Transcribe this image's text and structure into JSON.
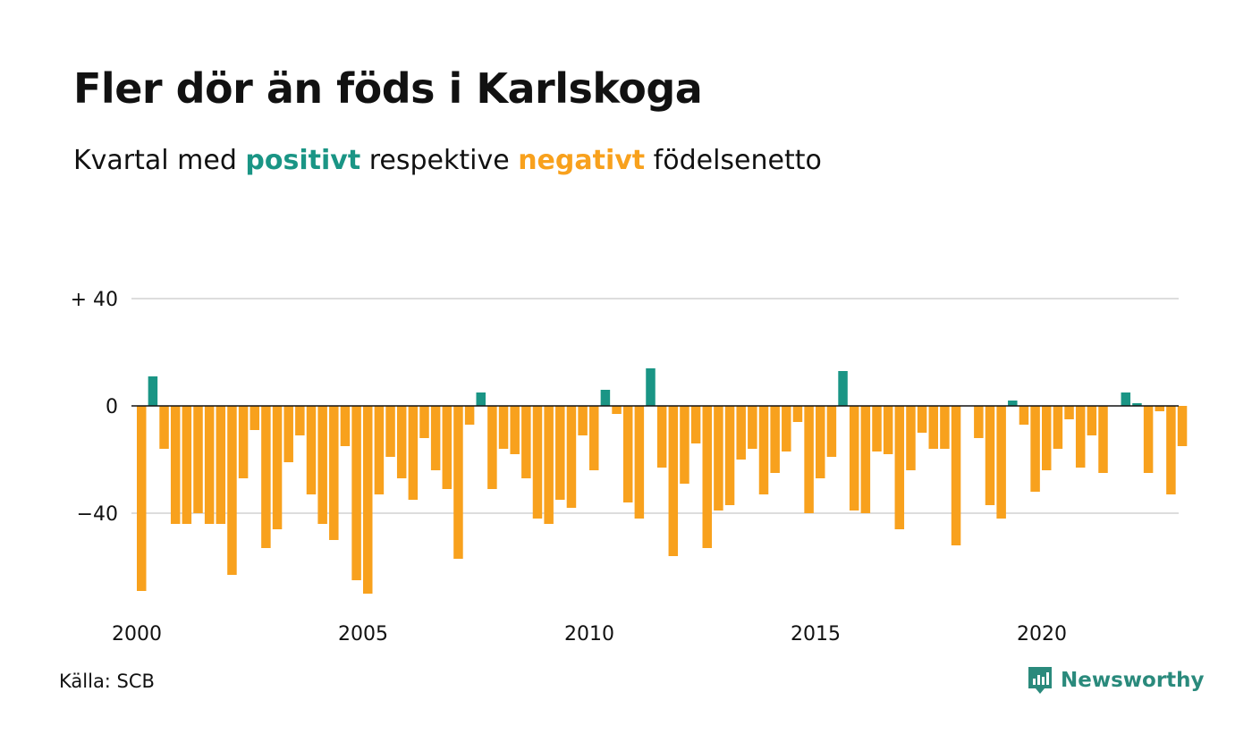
{
  "title": "Fler dör än föds i Karlskoga",
  "subtitle": {
    "part1": "Kvartal med ",
    "positive_word": "positivt",
    "part2": " respektive ",
    "negative_word": "negativt",
    "part3": " födelsenetto"
  },
  "source": "Källa: SCB",
  "brand": {
    "name": "Newsworthy",
    "icon": "newsworthy-logo-icon"
  },
  "colors": {
    "positive": "#1a9585",
    "negative": "#f8a11d",
    "grid": "#dddddd",
    "brand": "#2a8a7c"
  },
  "chart_data": {
    "type": "bar",
    "granularity": "quarter",
    "start_year": 2000,
    "ylim": [
      -70,
      40
    ],
    "y_ticks": [
      40,
      0,
      -40
    ],
    "y_tick_labels": [
      "+ 40",
      "0",
      "−40"
    ],
    "x_tick_labels": [
      "2000",
      "2005",
      "2010",
      "2015",
      "2020"
    ],
    "values": [
      -69,
      11,
      -16,
      -44,
      -44,
      -40,
      -44,
      -44,
      -63,
      -27,
      -9,
      -53,
      -46,
      -21,
      -11,
      -33,
      -44,
      -50,
      -15,
      -65,
      -70,
      -33,
      -19,
      -27,
      -35,
      -12,
      -24,
      -31,
      -57,
      -7,
      5,
      -31,
      -16,
      -18,
      -27,
      -42,
      -44,
      -35,
      -38,
      -11,
      -24,
      6,
      -3,
      -36,
      -42,
      14,
      -23,
      -56,
      -29,
      -14,
      -53,
      -39,
      -37,
      -20,
      -16,
      -33,
      -25,
      -17,
      -6,
      -40,
      -27,
      -19,
      13,
      -39,
      -40,
      -17,
      -18,
      -46,
      -24,
      -10,
      -16,
      -16,
      -52,
      0,
      -12,
      -37,
      -42,
      2,
      -7,
      -32,
      -24,
      -16,
      -5,
      -23,
      -11,
      -25,
      0,
      5,
      1,
      -25,
      -2,
      -33,
      -15
    ]
  }
}
